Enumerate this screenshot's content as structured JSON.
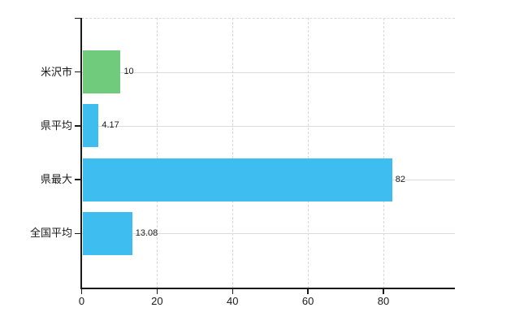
{
  "chart_data": {
    "type": "bar",
    "orientation": "horizontal",
    "title": "",
    "xlabel": "",
    "ylabel": "",
    "categories": [
      "米沢市",
      "県平均",
      "県最大",
      "全国平均"
    ],
    "values": [
      10,
      4.17,
      82,
      13.08
    ],
    "value_labels": [
      "10",
      "4.17",
      "82",
      "13.08"
    ],
    "series_colors": [
      "#70cb7d",
      "#3dbdf0",
      "#3dbdf0",
      "#3dbdf0"
    ],
    "x_ticks": [
      0,
      20,
      40,
      60,
      80
    ],
    "x_tick_labels": [
      "0",
      "20",
      "40",
      "60",
      "80"
    ],
    "xlim": [
      0,
      99
    ],
    "grid": true,
    "legend": false
  },
  "colors": {
    "bar_green": "#70cb7d",
    "bar_blue": "#3dbdf0",
    "axis": "#1a1a1a",
    "grid_horizontal": "#d9ded9",
    "grid_vertical": "#d8d8d8",
    "background": "#ffffff",
    "text": "#1a1a1a"
  }
}
